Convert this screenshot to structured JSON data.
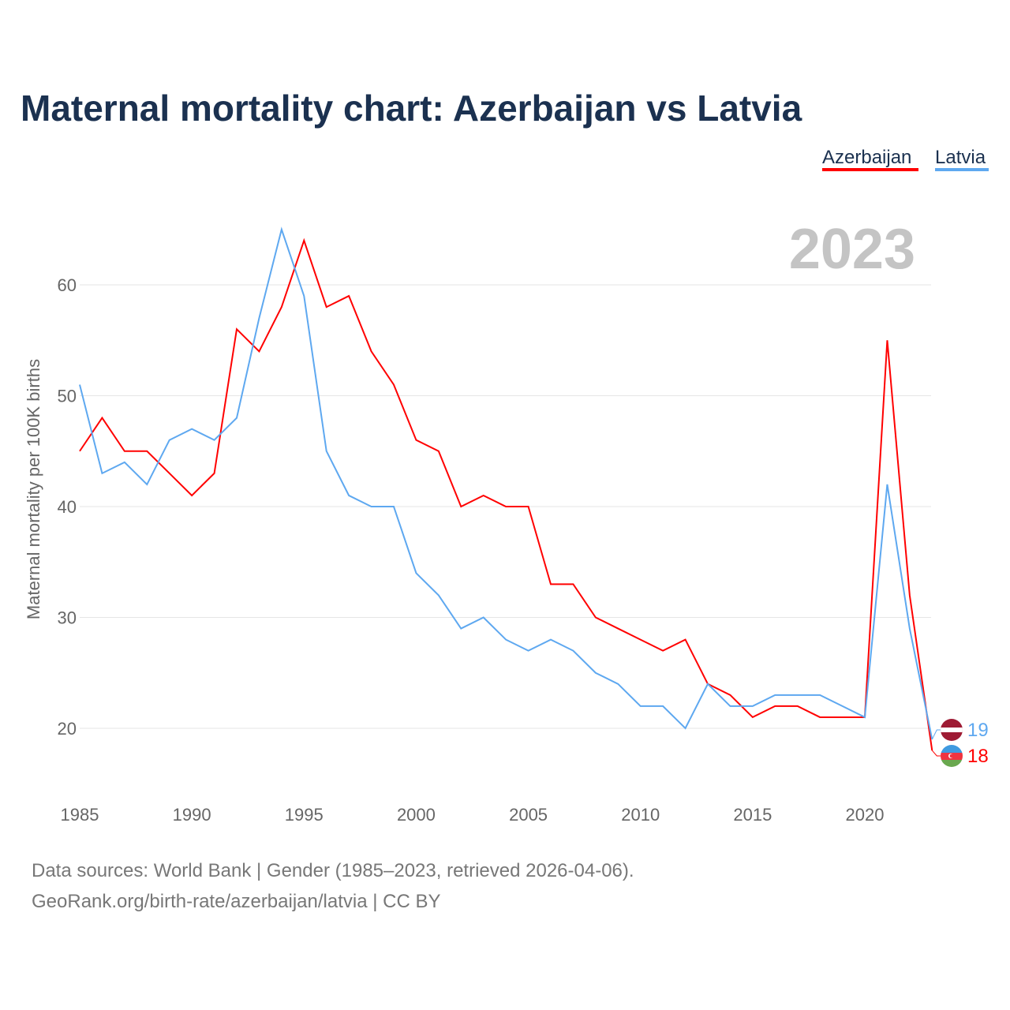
{
  "chart_data": {
    "type": "line",
    "title": "Maternal mortality chart: Azerbaijan vs Latvia",
    "ylabel": "Maternal mortality per 100K births",
    "xlabel": "",
    "year_label": "2023",
    "x": [
      1985,
      1986,
      1987,
      1988,
      1989,
      1990,
      1991,
      1992,
      1993,
      1994,
      1995,
      1996,
      1997,
      1998,
      1999,
      2000,
      2001,
      2002,
      2003,
      2004,
      2005,
      2006,
      2007,
      2008,
      2009,
      2010,
      2011,
      2012,
      2013,
      2014,
      2015,
      2016,
      2017,
      2018,
      2019,
      2020,
      2021,
      2022,
      2023
    ],
    "xticks": [
      "1985",
      "1990",
      "1995",
      "2000",
      "2005",
      "2010",
      "2015",
      "2020"
    ],
    "yticks": [
      "20",
      "30",
      "40",
      "50",
      "60"
    ],
    "xlim": [
      1985,
      2023
    ],
    "ylim": [
      15,
      67
    ],
    "grid": true,
    "legend_placement": "top-right",
    "series": [
      {
        "name": "Azerbaijan",
        "color": "#ff0000",
        "end_label": "18",
        "values": [
          45,
          48,
          45,
          45,
          43,
          41,
          43,
          56,
          54,
          58,
          64,
          58,
          59,
          54,
          51,
          46,
          45,
          40,
          41,
          40,
          40,
          33,
          33,
          30,
          29,
          28,
          27,
          28,
          24,
          23,
          21,
          22,
          22,
          21,
          21,
          21,
          55,
          32,
          18
        ]
      },
      {
        "name": "Latvia",
        "color": "#5ea8f0",
        "end_label": "19",
        "values": [
          51,
          43,
          44,
          42,
          46,
          47,
          46,
          48,
          57,
          65,
          59,
          45,
          41,
          40,
          40,
          34,
          32,
          29,
          30,
          28,
          27,
          28,
          27,
          25,
          24,
          22,
          22,
          20,
          24,
          22,
          22,
          23,
          23,
          23,
          22,
          21,
          42,
          29,
          19
        ]
      }
    ]
  },
  "footer": {
    "source": "Data sources: World Bank | Gender (1985–2023, retrieved 2026-04-06).",
    "credit": "GeoRank.org/birth-rate/azerbaijan/latvia | CC BY"
  }
}
